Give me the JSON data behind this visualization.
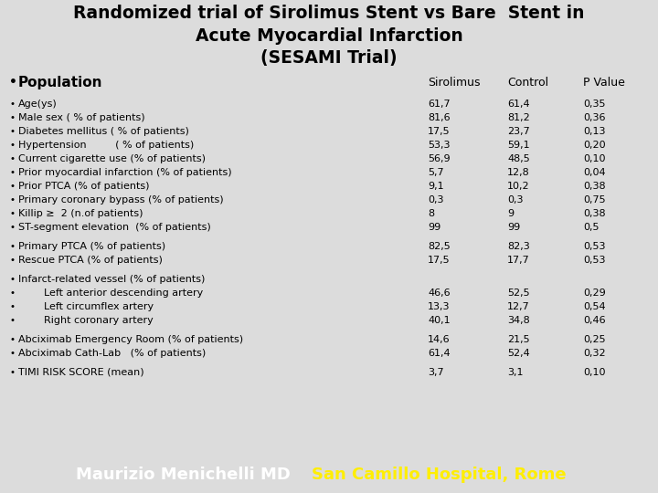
{
  "title_line1": "Randomized trial of Sirolimus Stent vs Bare  Stent in",
  "title_line2": "Acute Myocardial Infarction",
  "title_line3": "(SESAMI Trial)",
  "bg_color": "#dcdcdc",
  "footer_bg": "#e07818",
  "footer_text1": "Maurizio Menichelli MD",
  "footer_text2": "San Camillo Hospital, Rome",
  "col_headers": [
    "Sirolimus",
    "Control",
    "P Value"
  ],
  "section_header": "Population",
  "rows": [
    {
      "label": "Age(ys)",
      "siro": "61,7",
      "ctrl": "61,4",
      "pval": "0,35",
      "gap_before": true,
      "no_bullet": false
    },
    {
      "label": "Male sex ( % of patients)",
      "siro": "81,6",
      "ctrl": "81,2",
      "pval": "0,36",
      "gap_before": false,
      "no_bullet": false
    },
    {
      "label": "Diabetes mellitus ( % of patients)",
      "siro": "17,5",
      "ctrl": "23,7",
      "pval": "0,13",
      "gap_before": false,
      "no_bullet": false
    },
    {
      "label": "Hypertension         ( % of patients)",
      "siro": "53,3",
      "ctrl": "59,1",
      "pval": "0,20",
      "gap_before": false,
      "no_bullet": false
    },
    {
      "label": "Current cigarette use (% of patients)",
      "siro": "56,9",
      "ctrl": "48,5",
      "pval": "0,10",
      "gap_before": false,
      "no_bullet": false
    },
    {
      "label": "Prior myocardial infarction (% of patients)",
      "siro": "5,7",
      "ctrl": "12,8",
      "pval": "0,04",
      "gap_before": false,
      "no_bullet": false
    },
    {
      "label": "Prior PTCA (% of patients)",
      "siro": "9,1",
      "ctrl": "10,2",
      "pval": "0,38",
      "gap_before": false,
      "no_bullet": false
    },
    {
      "label": "Primary coronary bypass (% of patients)",
      "siro": "0,3",
      "ctrl": "0,3",
      "pval": "0,75",
      "gap_before": false,
      "no_bullet": false
    },
    {
      "label": "Killip ≥  2 (n.of patients)",
      "siro": "8",
      "ctrl": "9",
      "pval": "0,38",
      "gap_before": false,
      "no_bullet": false
    },
    {
      "label": "ST-segment elevation  (% of patients)",
      "siro": "99",
      "ctrl": "99",
      "pval": "0,5",
      "gap_before": false,
      "no_bullet": false
    },
    {
      "label": "Primary PTCA (% of patients)",
      "siro": "82,5",
      "ctrl": "82,3",
      "pval": "0,53",
      "gap_before": true,
      "no_bullet": false
    },
    {
      "label": "Rescue PTCA (% of patients)",
      "siro": "17,5",
      "ctrl": "17,7",
      "pval": "0,53",
      "gap_before": false,
      "no_bullet": false
    },
    {
      "label": "Infarct-related vessel (% of patients)",
      "siro": "",
      "ctrl": "",
      "pval": "",
      "gap_before": true,
      "no_bullet": false
    },
    {
      "label": "        Left anterior descending artery",
      "siro": "46,6",
      "ctrl": "52,5",
      "pval": "0,29",
      "gap_before": false,
      "no_bullet": false
    },
    {
      "label": "        Left circumflex artery",
      "siro": "13,3",
      "ctrl": "12,7",
      "pval": "0,54",
      "gap_before": false,
      "no_bullet": false
    },
    {
      "label": "        Right coronary artery",
      "siro": "40,1",
      "ctrl": "34,8",
      "pval": "0,46",
      "gap_before": false,
      "no_bullet": false
    },
    {
      "label": "Abciximab Emergency Room (% of patients)",
      "siro": "14,6",
      "ctrl": "21,5",
      "pval": "0,25",
      "gap_before": true,
      "no_bullet": false
    },
    {
      "label": "Abciximab Cath-Lab   (% of patients)",
      "siro": "61,4",
      "ctrl": "52,4",
      "pval": "0,32",
      "gap_before": false,
      "no_bullet": false
    },
    {
      "label": "TIMI RISK SCORE (mean)",
      "siro": "3,7",
      "ctrl": "3,1",
      "pval": "0,10",
      "gap_before": true,
      "no_bullet": false
    }
  ]
}
